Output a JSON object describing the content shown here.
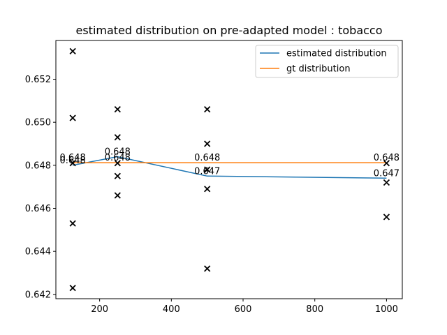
{
  "chart_data": {
    "type": "line",
    "title": "estimated distribution on pre-adapted model : tobacco",
    "xlabel": "",
    "ylabel": "",
    "xlim": [
      78,
      1044
    ],
    "ylim": [
      0.6418,
      0.6538
    ],
    "xticks": [
      200,
      400,
      600,
      800,
      1000
    ],
    "xtick_labels": [
      "200",
      "400",
      "600",
      "800",
      "1000"
    ],
    "yticks": [
      0.642,
      0.644,
      0.646,
      0.648,
      0.65,
      0.652
    ],
    "ytick_labels": [
      "0.642",
      "0.644",
      "0.646",
      "0.648",
      "0.650",
      "0.652"
    ],
    "grid": false,
    "legend_position": "top-right",
    "series": [
      {
        "name": "estimated distribution",
        "color": "#1f77b4",
        "x": [
          125,
          250,
          500,
          1000
        ],
        "y": [
          0.648,
          0.6484,
          0.6475,
          0.6474
        ]
      },
      {
        "name": "gt distribution",
        "color": "#ff7f0e",
        "x": [
          125,
          250,
          500,
          1000
        ],
        "y": [
          0.64812,
          0.64812,
          0.64812,
          0.64812
        ]
      }
    ],
    "scatter": {
      "marker": "x",
      "color": "#000000",
      "points": [
        [
          125,
          0.6533
        ],
        [
          125,
          0.6502
        ],
        [
          125,
          0.6481
        ],
        [
          125,
          0.6453
        ],
        [
          125,
          0.6423
        ],
        [
          250,
          0.6506
        ],
        [
          250,
          0.6493
        ],
        [
          250,
          0.6481
        ],
        [
          250,
          0.6475
        ],
        [
          250,
          0.6466
        ],
        [
          500,
          0.6506
        ],
        [
          500,
          0.649
        ],
        [
          500,
          0.6478
        ],
        [
          500,
          0.6469
        ],
        [
          500,
          0.6432
        ],
        [
          1000,
          0.6481
        ],
        [
          1000,
          0.6472
        ],
        [
          1000,
          0.6456
        ]
      ]
    },
    "annotations": [
      {
        "x": 125,
        "y": 0.648,
        "text": "0.648"
      },
      {
        "x": 125,
        "y": 0.64812,
        "text": "0.648"
      },
      {
        "x": 250,
        "y": 0.6484,
        "text": "0.648"
      },
      {
        "x": 250,
        "y": 0.64812,
        "text": "0.648"
      },
      {
        "x": 500,
        "y": 0.6475,
        "text": "0.647"
      },
      {
        "x": 500,
        "y": 0.64812,
        "text": "0.648"
      },
      {
        "x": 1000,
        "y": 0.6474,
        "text": "0.647"
      },
      {
        "x": 1000,
        "y": 0.64812,
        "text": "0.648"
      }
    ]
  }
}
